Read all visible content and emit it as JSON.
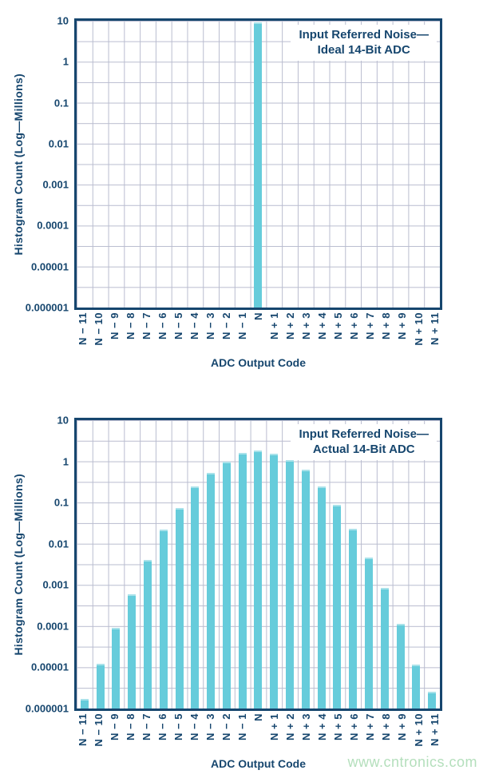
{
  "colors": {
    "bar_fill": "#66ccdb",
    "bar_top_highlight": "#a9e2ea",
    "navy_text": "#16466e",
    "grid_line": "#b9bccf",
    "plot_border": "#16466e",
    "watermark_green": "#b4dfbc",
    "background": "#ffffff"
  },
  "watermark": {
    "text": "www.cntronics.com"
  },
  "chart_data": [
    {
      "type": "bar",
      "title": "Input Referred Noise—Ideal 14-Bit ADC",
      "title_lines": [
        "Input Referred Noise—",
        "Ideal 14-Bit ADC"
      ],
      "xlabel": "ADC Output Code",
      "ylabel": "Histogram Count (Log—Millions)",
      "y_scale": "log",
      "ylim": [
        1e-06,
        10
      ],
      "y_tick_labels": [
        "10",
        "1",
        "0.1",
        "0.01",
        "0.001",
        "0.0001",
        "0.00001",
        "0.000001"
      ],
      "grid": true,
      "legend_position": "none",
      "categories": [
        "N − 11",
        "N − 10",
        "N − 9",
        "N − 8",
        "N − 7",
        "N − 6",
        "N − 5",
        "N − 4",
        "N − 3",
        "N − 2",
        "N − 1",
        "N",
        "N + 1",
        "N + 2",
        "N + 3",
        "N + 4",
        "N + 5",
        "N + 6",
        "N + 7",
        "N + 8",
        "N + 9",
        "N + 10",
        "N + 11"
      ],
      "values": [
        0,
        0,
        0,
        0,
        0,
        0,
        0,
        0,
        0,
        0,
        0,
        9,
        0,
        0,
        0,
        0,
        0,
        0,
        0,
        0,
        0,
        0,
        0
      ]
    },
    {
      "type": "bar",
      "title": "Input Referred Noise—Actual 14-Bit ADC",
      "title_lines": [
        "Input Referred Noise—",
        "Actual 14-Bit ADC"
      ],
      "xlabel": "ADC Output Code",
      "ylabel": "Histogram Count (Log—Millions)",
      "y_scale": "log",
      "ylim": [
        1e-06,
        10
      ],
      "y_tick_labels": [
        "10",
        "1",
        "0.1",
        "0.01",
        "0.001",
        "0.0001",
        "0.00001",
        "0.000001"
      ],
      "grid": true,
      "legend_position": "none",
      "categories": [
        "N − 11",
        "N − 10",
        "N − 9",
        "N − 8",
        "N − 7",
        "N − 6",
        "N − 5",
        "N − 4",
        "N − 3",
        "N − 2",
        "N − 1",
        "N",
        "N + 1",
        "N + 2",
        "N + 3",
        "N + 4",
        "N + 5",
        "N + 6",
        "N + 7",
        "N + 8",
        "N + 9",
        "N + 10",
        "N + 11"
      ],
      "values": [
        1.7e-06,
        1.2e-05,
        9e-05,
        0.0006,
        0.004,
        0.022,
        0.075,
        0.25,
        0.53,
        1.0,
        1.6,
        1.85,
        1.55,
        1.05,
        0.62,
        0.25,
        0.09,
        0.023,
        0.0046,
        0.00086,
        0.000115,
        1.15e-05,
        2.6e-06
      ]
    }
  ]
}
